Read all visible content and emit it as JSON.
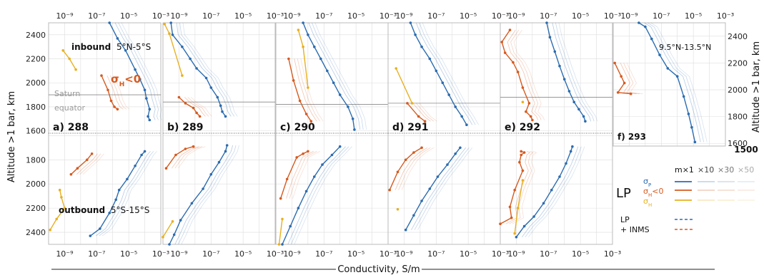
{
  "chart_data": {
    "type": "line",
    "xlabel": "Conductivity, S/m",
    "ylabel_left": "Altitude >1 bar, km",
    "ylabel_right": "Altitude >1 bar, km",
    "x_scale": "log",
    "xlim": [
      1e-10,
      0.001
    ],
    "x_ticks": [
      "10⁻⁹",
      "10⁻⁷",
      "10⁻⁵",
      "10⁻³"
    ],
    "y_ticks_in": [
      "2400",
      "2200",
      "2000",
      "1800",
      "1600"
    ],
    "y_ticks_out": [
      "1800",
      "2000",
      "2200",
      "2400"
    ],
    "y_ticks_right": [
      "2400",
      "2200",
      "2000",
      "1800",
      "1600"
    ],
    "ylim_inbound": [
      1580,
      2500
    ],
    "ylim_outbound": [
      1580,
      2500
    ],
    "extra_label": "1500",
    "inbound_label": "inbound",
    "inbound_lat": "5°N-5°S",
    "outbound_label": "outbound",
    "outbound_lat": "5°S-15°S",
    "f_lat": "9.5°N-13.5°N",
    "sigma_h_neg": "σ",
    "sigma_h_sub": "H",
    "sigma_h_tail": "<0",
    "equator_label_1": "Saturn",
    "equator_label_2": "equator",
    "colors": {
      "pedersen": "#2b6cb0",
      "hall_neg": "#d65a1f",
      "hall": "#e8b020",
      "grid": "#dddddd"
    },
    "panels": [
      {
        "label": "a) 288",
        "equator": 1900,
        "in": {
          "sp": [
            [
              -6.2,
              2500
            ],
            [
              -5.7,
              2370
            ],
            [
              -5.2,
              2270
            ],
            [
              -4.6,
              2110
            ],
            [
              -4.3,
              2030
            ],
            [
              -4.0,
              1940
            ],
            [
              -3.9,
              1870
            ],
            [
              -3.7,
              1780
            ],
            [
              -3.8,
              1720
            ],
            [
              -3.7,
              1690
            ]
          ],
          "sh": [
            [
              -6.7,
              2060
            ],
            [
              -6.3,
              1940
            ],
            [
              -6.1,
              1850
            ],
            [
              -5.9,
              1800
            ],
            [
              -5.7,
              1780
            ]
          ],
          "sh_pos": [
            [
              -9.1,
              2270
            ],
            [
              -8.7,
              2200
            ],
            [
              -8.3,
              2110
            ]
          ]
        },
        "out": {
          "sp": [
            [
              -7.4,
              2430
            ],
            [
              -6.8,
              2370
            ],
            [
              -6.2,
              2240
            ],
            [
              -5.8,
              2130
            ],
            [
              -5.6,
              2050
            ],
            [
              -5.1,
              1960
            ],
            [
              -4.6,
              1850
            ],
            [
              -4.2,
              1760
            ],
            [
              -4.0,
              1730
            ]
          ],
          "sh": [
            [
              -8.6,
              1920
            ],
            [
              -8.2,
              1870
            ],
            [
              -7.6,
              1800
            ],
            [
              -7.3,
              1750
            ]
          ],
          "sh_pos": [
            [
              -9.9,
              2380
            ],
            [
              -9.5,
              2290
            ],
            [
              -9.0,
              2200
            ],
            [
              -9.2,
              2110
            ],
            [
              -9.3,
              2050
            ]
          ]
        }
      },
      {
        "label": "b) 289",
        "equator": 1840,
        "in": {
          "sp": [
            [
              -9.5,
              2500
            ],
            [
              -9.4,
              2400
            ],
            [
              -8.8,
              2300
            ],
            [
              -8.3,
              2200
            ],
            [
              -7.9,
              2120
            ],
            [
              -7.3,
              2040
            ],
            [
              -7.0,
              1960
            ],
            [
              -6.6,
              1880
            ],
            [
              -6.4,
              1810
            ],
            [
              -6.3,
              1760
            ],
            [
              -6.1,
              1720
            ]
          ],
          "sh": [
            [
              -9.0,
              1880
            ],
            [
              -8.6,
              1830
            ],
            [
              -8.1,
              1790
            ],
            [
              -7.9,
              1750
            ],
            [
              -7.7,
              1720
            ]
          ],
          "sh_pos": [
            [
              -9.9,
              2490
            ],
            [
              -9.6,
              2410
            ],
            [
              -8.8,
              2060
            ]
          ]
        },
        "out": {
          "sp": [
            [
              -9.6,
              2500
            ],
            [
              -9.3,
              2420
            ],
            [
              -8.9,
              2300
            ],
            [
              -8.2,
              2160
            ],
            [
              -7.5,
              2040
            ],
            [
              -7.0,
              1920
            ],
            [
              -6.5,
              1820
            ],
            [
              -6.1,
              1730
            ],
            [
              -6.0,
              1680
            ]
          ],
          "sh": [
            [
              -9.8,
              1870
            ],
            [
              -9.2,
              1760
            ],
            [
              -8.6,
              1710
            ],
            [
              -8.1,
              1690
            ]
          ],
          "sh_pos": [
            [
              -10.0,
              2440
            ],
            [
              -9.4,
              2310
            ]
          ]
        }
      },
      {
        "label": "c) 290",
        "equator": 1820,
        "in": {
          "sp": [
            [
              -8.3,
              2500
            ],
            [
              -8.0,
              2400
            ],
            [
              -7.6,
              2300
            ],
            [
              -7.2,
              2200
            ],
            [
              -6.8,
              2100
            ],
            [
              -6.4,
              2000
            ],
            [
              -6.0,
              1900
            ],
            [
              -5.5,
              1800
            ],
            [
              -5.2,
              1700
            ],
            [
              -5.1,
              1610
            ]
          ],
          "sh": [
            [
              -9.2,
              2200
            ],
            [
              -8.9,
              2020
            ],
            [
              -8.5,
              1850
            ],
            [
              -8.1,
              1740
            ],
            [
              -7.8,
              1680
            ]
          ],
          "sh_pos": [
            [
              -8.6,
              2440
            ],
            [
              -8.3,
              2300
            ],
            [
              -8.0,
              1960
            ]
          ]
        },
        "out": {
          "sp": [
            [
              -9.6,
              2500
            ],
            [
              -9.1,
              2350
            ],
            [
              -8.6,
              2200
            ],
            [
              -8.1,
              2060
            ],
            [
              -7.6,
              1940
            ],
            [
              -7.1,
              1840
            ],
            [
              -6.5,
              1760
            ],
            [
              -6.0,
              1690
            ]
          ],
          "sh": [
            [
              -9.7,
              2120
            ],
            [
              -9.3,
              1960
            ],
            [
              -8.7,
              1780
            ],
            [
              -8.3,
              1750
            ],
            [
              -8.0,
              1730
            ]
          ],
          "sh_pos": [
            [
              -9.8,
              2500
            ],
            [
              -9.6,
              2290
            ]
          ]
        }
      },
      {
        "label": "d) 291",
        "equator": 1830,
        "in": {
          "sp": [
            [
              -8.6,
              2500
            ],
            [
              -8.3,
              2400
            ],
            [
              -7.9,
              2300
            ],
            [
              -7.4,
              2200
            ],
            [
              -7.0,
              2100
            ],
            [
              -6.6,
              2000
            ],
            [
              -6.2,
              1900
            ],
            [
              -5.8,
              1800
            ],
            [
              -5.4,
              1720
            ],
            [
              -5.1,
              1650
            ]
          ],
          "sh": [
            [
              -8.8,
              1830
            ],
            [
              -8.1,
              1720
            ],
            [
              -7.7,
              1680
            ]
          ],
          "sh_pos": [
            [
              -9.5,
              2120
            ],
            [
              -8.5,
              1830
            ]
          ]
        },
        "out": {
          "sp": [
            [
              -8.9,
              2380
            ],
            [
              -8.4,
              2260
            ],
            [
              -7.9,
              2140
            ],
            [
              -7.4,
              2040
            ],
            [
              -6.9,
              1940
            ],
            [
              -6.3,
              1840
            ],
            [
              -5.8,
              1750
            ],
            [
              -5.5,
              1700
            ]
          ],
          "sh": [
            [
              -9.9,
              2050
            ],
            [
              -9.4,
              1900
            ],
            [
              -8.9,
              1800
            ],
            [
              -8.4,
              1740
            ],
            [
              -7.9,
              1700
            ]
          ],
          "sh_pos": [
            [
              -9.4,
              2210
            ]
          ]
        }
      },
      {
        "label": "e) 292",
        "equator": 1880,
        "in": {
          "sp": [
            [
              -7.1,
              2500
            ],
            [
              -6.9,
              2380
            ],
            [
              -6.6,
              2260
            ],
            [
              -6.3,
              2140
            ],
            [
              -6.0,
              2030
            ],
            [
              -5.7,
              1930
            ],
            [
              -5.4,
              1840
            ],
            [
              -5.1,
              1780
            ],
            [
              -4.8,
              1720
            ],
            [
              -4.7,
              1680
            ]
          ],
          "sh": [
            [
              -9.4,
              2440
            ],
            [
              -9.9,
              2340
            ],
            [
              -9.7,
              2250
            ],
            [
              -9.2,
              2170
            ],
            [
              -8.9,
              2090
            ],
            [
              -8.6,
              1960
            ],
            [
              -8.2,
              1830
            ],
            [
              -8.4,
              1760
            ],
            [
              -8.1,
              1720
            ],
            [
              -8.0,
              1690
            ]
          ],
          "sh_pos": [
            [
              -8.6,
              1840
            ]
          ]
        },
        "out": {
          "sp": [
            [
              -9.0,
              2440
            ],
            [
              -8.5,
              2350
            ],
            [
              -7.9,
              2270
            ],
            [
              -7.3,
              2160
            ],
            [
              -6.8,
              2050
            ],
            [
              -6.3,
              1940
            ],
            [
              -5.9,
              1830
            ],
            [
              -5.6,
              1730
            ],
            [
              -5.5,
              1690
            ]
          ],
          "sh": [
            [
              -10.0,
              2330
            ],
            [
              -9.3,
              2280
            ],
            [
              -9.4,
              2190
            ],
            [
              -9.1,
              2050
            ],
            [
              -8.6,
              1890
            ],
            [
              -8.8,
              1820
            ],
            [
              -8.7,
              1760
            ],
            [
              -8.5,
              1740
            ],
            [
              -8.7,
              1730
            ]
          ],
          "sh_pos": [
            [
              -9.1,
              2410
            ],
            [
              -8.9,
              2200
            ],
            [
              -8.6,
              1970
            ]
          ]
        }
      },
      {
        "label": "f) 293",
        "equator": null,
        "in": {
          "sp": [
            [
              -8.4,
              2500
            ],
            [
              -8.0,
              2470
            ],
            [
              -7.6,
              2380
            ],
            [
              -7.1,
              2260
            ],
            [
              -6.6,
              2160
            ],
            [
              -6.0,
              2100
            ],
            [
              -5.6,
              1950
            ],
            [
              -5.3,
              1820
            ],
            [
              -5.1,
              1720
            ],
            [
              -4.9,
              1610
            ]
          ],
          "sh": [
            [
              -9.9,
              2200
            ],
            [
              -9.5,
              2100
            ],
            [
              -9.3,
              2050
            ],
            [
              -9.7,
              1980
            ],
            [
              -8.9,
              1970
            ]
          ],
          "sh_pos": []
        },
        "out": {
          "sp": [],
          "sh": [],
          "sh_pos": []
        }
      }
    ],
    "legend": {
      "title": "LP",
      "multipliers": [
        "m×1",
        "×10",
        "×30",
        "×50"
      ],
      "rows": [
        {
          "sym": "σ",
          "sub": "P",
          "tail": ""
        },
        {
          "sym": "σ",
          "sub": "H",
          "tail": "<0"
        },
        {
          "sym": "σ",
          "sub": "H",
          "tail": ""
        }
      ],
      "lp_inms_1": "LP",
      "lp_inms_2": "+ INMS"
    }
  }
}
